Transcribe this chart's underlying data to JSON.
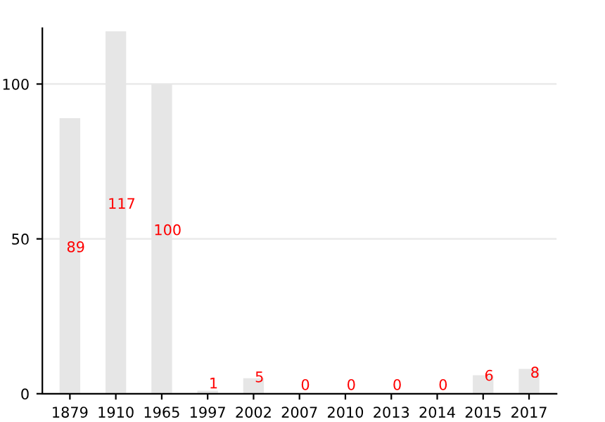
{
  "chart_data": {
    "type": "bar",
    "categories": [
      "1879",
      "1910",
      "1965",
      "1997",
      "2002",
      "2007",
      "2010",
      "2013",
      "2014",
      "2015",
      "2017"
    ],
    "values": [
      89,
      117,
      100,
      1,
      5,
      0,
      0,
      0,
      0,
      6,
      8
    ],
    "color": "#e6e6e6",
    "ylim": [
      0,
      118
    ],
    "yticks": [
      0,
      50,
      100
    ],
    "grid": "y",
    "data_labels": true
  }
}
